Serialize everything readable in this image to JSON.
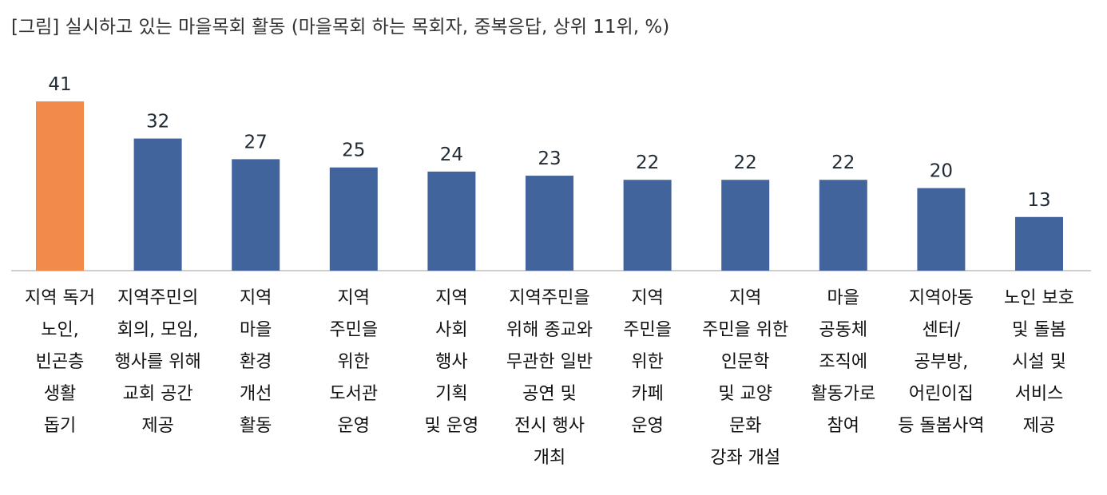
{
  "title": "[그림] 실시하고 있는 마을목회 활동 (마을목회 하는 목회자, 중복응답, 상위 11위,  %)",
  "colors": {
    "default": "#41649c",
    "highlight": "#f28a4a",
    "axis": "#bfbfbf"
  },
  "chart_data": {
    "type": "bar",
    "categories": [
      "지역 독거\n노인,\n빈곤층\n생활\n돕기",
      "지역주민의\n회의, 모임,\n행사를 위해\n교회 공간\n제공",
      "지역\n마을\n환경\n개선\n활동",
      "지역\n주민을\n위한\n도서관\n운영",
      "지역\n사회\n행사\n기획\n및 운영",
      "지역주민을\n위해 종교와\n무관한 일반\n공연 및\n전시 행사\n개최",
      "지역\n주민을\n위한\n카페\n운영",
      "지역\n주민을 위한\n인문학\n및 교양\n문화\n강좌 개설",
      "마을\n공동체\n조직에\n활동가로\n참여",
      "지역아동\n센터/\n공부방,\n어린이집\n등 돌봄사역",
      "노인 보호\n및 돌봄\n시설 및\n서비스\n제공"
    ],
    "values": [
      41,
      32,
      27,
      25,
      24,
      23,
      22,
      22,
      22,
      20,
      13
    ],
    "highlight_index": 0,
    "ylim": [
      0,
      41
    ],
    "grid": false
  }
}
